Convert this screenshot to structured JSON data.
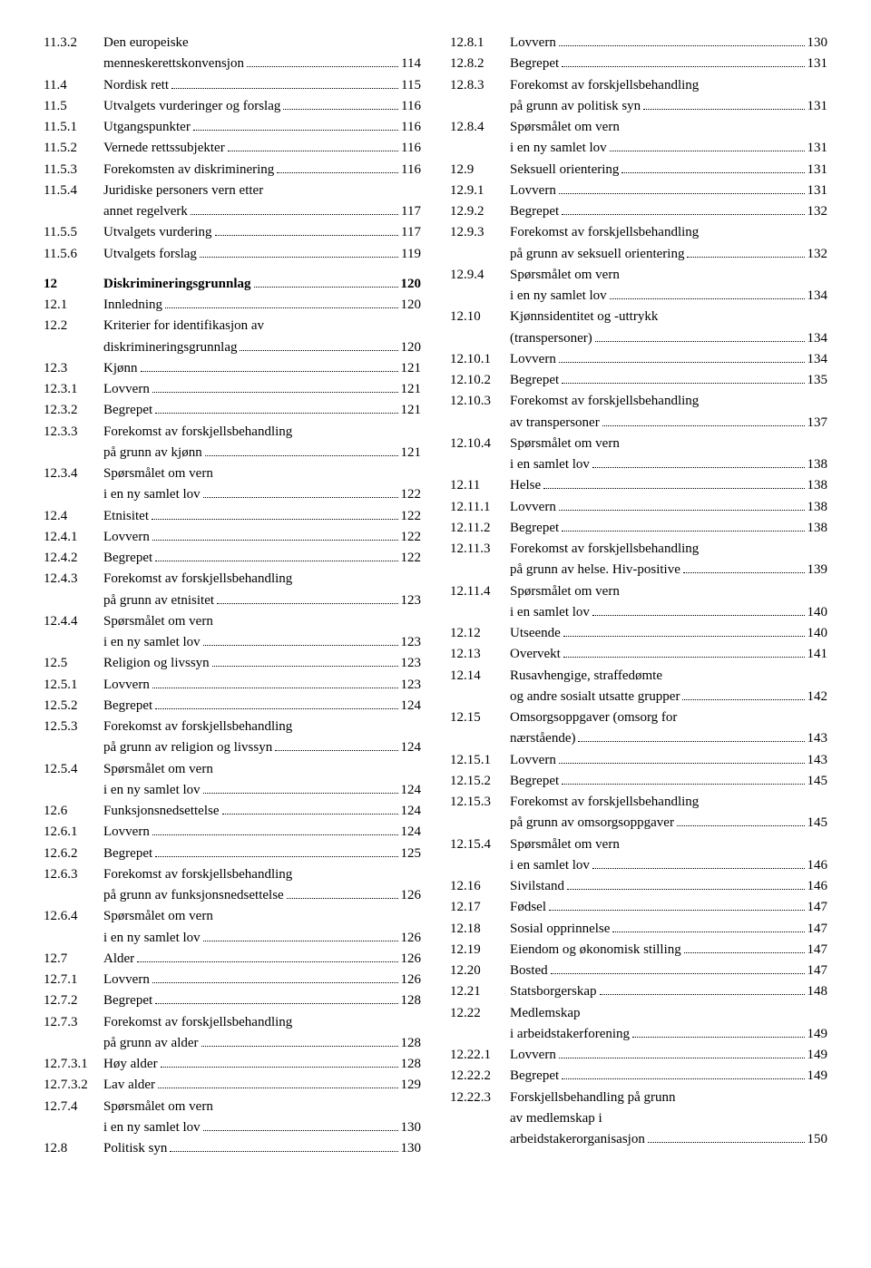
{
  "fontsize_pt": 11,
  "colors": {
    "text": "#000000",
    "background": "#ffffff",
    "dots": "#000000"
  },
  "left": [
    {
      "num": "11.3.2",
      "title": "Den europeiske",
      "cont": [
        "menneskerettskonvensjon"
      ],
      "page": "114"
    },
    {
      "num": "11.4",
      "title": "Nordisk rett",
      "page": "115"
    },
    {
      "num": "11.5",
      "title": "Utvalgets vurderinger og forslag",
      "page": "116"
    },
    {
      "num": "11.5.1",
      "title": "Utgangspunkter",
      "page": "116"
    },
    {
      "num": "11.5.2",
      "title": "Vernede rettssubjekter",
      "page": "116"
    },
    {
      "num": "11.5.3",
      "title": "Forekomsten av diskriminering",
      "page": "116"
    },
    {
      "num": "11.5.4",
      "title": "Juridiske personers vern etter",
      "cont": [
        "annet regelverk"
      ],
      "page": "117"
    },
    {
      "num": "11.5.5",
      "title": "Utvalgets vurdering",
      "page": "117"
    },
    {
      "num": "11.5.6",
      "title": "Utvalgets forslag",
      "page": "119"
    },
    {
      "num": "12",
      "title": "Diskrimineringsgrunnlag",
      "page": "120",
      "bold": true,
      "gap": true
    },
    {
      "num": "12.1",
      "title": "Innledning",
      "page": "120"
    },
    {
      "num": "12.2",
      "title": "Kriterier for identifikasjon av",
      "cont": [
        "diskrimineringsgrunnlag"
      ],
      "page": "120"
    },
    {
      "num": "12.3",
      "title": "Kjønn",
      "page": "121"
    },
    {
      "num": "12.3.1",
      "title": "Lovvern",
      "page": "121"
    },
    {
      "num": "12.3.2",
      "title": "Begrepet",
      "page": "121"
    },
    {
      "num": "12.3.3",
      "title": "Forekomst av forskjellsbehandling",
      "cont": [
        "på grunn av kjønn"
      ],
      "page": "121"
    },
    {
      "num": "12.3.4",
      "title": "Spørsmålet om vern",
      "cont": [
        "i en ny samlet lov"
      ],
      "page": "122"
    },
    {
      "num": "12.4",
      "title": "Etnisitet",
      "page": "122"
    },
    {
      "num": "12.4.1",
      "title": "Lovvern",
      "page": "122"
    },
    {
      "num": "12.4.2",
      "title": "Begrepet",
      "page": "122"
    },
    {
      "num": "12.4.3",
      "title": "Forekomst av forskjellsbehandling",
      "cont": [
        "på grunn av etnisitet"
      ],
      "page": "123"
    },
    {
      "num": "12.4.4",
      "title": "Spørsmålet om vern",
      "cont": [
        "i en ny samlet lov"
      ],
      "page": "123"
    },
    {
      "num": "12.5",
      "title": "Religion og livssyn",
      "page": "123"
    },
    {
      "num": "12.5.1",
      "title": "Lovvern",
      "page": "123"
    },
    {
      "num": "12.5.2",
      "title": "Begrepet",
      "page": "124"
    },
    {
      "num": "12.5.3",
      "title": "Forekomst av forskjellsbehandling",
      "cont": [
        "på grunn av religion og livssyn"
      ],
      "page": "124"
    },
    {
      "num": "12.5.4",
      "title": "Spørsmålet om vern",
      "cont": [
        " i en ny samlet lov"
      ],
      "page": "124"
    },
    {
      "num": "12.6",
      "title": "Funksjonsnedsettelse",
      "page": "124"
    },
    {
      "num": "12.6.1",
      "title": "Lovvern",
      "page": "124"
    },
    {
      "num": "12.6.2",
      "title": "Begrepet",
      "page": "125"
    },
    {
      "num": "12.6.3",
      "title": "Forekomst av forskjellsbehandling",
      "cont": [
        "på grunn av funksjonsnedsettelse"
      ],
      "page": "126"
    },
    {
      "num": "12.6.4",
      "title": "Spørsmålet om vern",
      "cont": [
        "i en ny samlet lov"
      ],
      "page": "126"
    },
    {
      "num": "12.7",
      "title": "Alder",
      "page": "126"
    },
    {
      "num": "12.7.1",
      "title": "Lovvern",
      "page": "126"
    },
    {
      "num": "12.7.2",
      "title": "Begrepet",
      "page": "128"
    },
    {
      "num": "12.7.3",
      "title": "Forekomst av forskjellsbehandling",
      "cont": [
        "på grunn av alder"
      ],
      "page": "128"
    },
    {
      "num": "12.7.3.1",
      "title": "Høy alder",
      "page": "128"
    },
    {
      "num": "12.7.3.2",
      "title": "Lav alder",
      "page": "129"
    },
    {
      "num": "12.7.4",
      "title": "Spørsmålet om vern",
      "cont": [
        "i en ny samlet lov"
      ],
      "page": "130"
    },
    {
      "num": "12.8",
      "title": "Politisk syn",
      "page": "130"
    }
  ],
  "right": [
    {
      "num": "12.8.1",
      "title": "Lovvern",
      "page": "130"
    },
    {
      "num": "12.8.2",
      "title": "Begrepet",
      "page": "131"
    },
    {
      "num": "12.8.3",
      "title": "Forekomst av forskjellsbehandling",
      "cont": [
        "på grunn av politisk syn"
      ],
      "page": "131"
    },
    {
      "num": "12.8.4",
      "title": "Spørsmålet om vern",
      "cont": [
        "i en ny samlet lov"
      ],
      "page": "131"
    },
    {
      "num": "12.9",
      "title": "Seksuell orientering",
      "page": "131"
    },
    {
      "num": "12.9.1",
      "title": "Lovvern",
      "page": "131"
    },
    {
      "num": "12.9.2",
      "title": "Begrepet",
      "page": "132"
    },
    {
      "num": "12.9.3",
      "title": "Forekomst av forskjellsbehandling",
      "cont": [
        "på grunn av seksuell orientering"
      ],
      "page": "132"
    },
    {
      "num": "12.9.4",
      "title": "Spørsmålet om vern",
      "cont": [
        "i en ny samlet lov"
      ],
      "page": "134"
    },
    {
      "num": "12.10",
      "title": "Kjønnsidentitet og -uttrykk",
      "cont": [
        "(transpersoner)"
      ],
      "page": "134"
    },
    {
      "num": "12.10.1",
      "title": "Lovvern",
      "page": "134"
    },
    {
      "num": "12.10.2",
      "title": "Begrepet",
      "page": "135"
    },
    {
      "num": "12.10.3",
      "title": "Forekomst av forskjellsbehandling",
      "cont": [
        "av transpersoner"
      ],
      "page": "137"
    },
    {
      "num": "12.10.4",
      "title": "Spørsmålet om vern",
      "cont": [
        "i en samlet lov"
      ],
      "page": "138"
    },
    {
      "num": "12.11",
      "title": "Helse",
      "page": "138"
    },
    {
      "num": "12.11.1",
      "title": "Lovvern",
      "page": "138"
    },
    {
      "num": "12.11.2",
      "title": "Begrepet",
      "page": "138"
    },
    {
      "num": "12.11.3",
      "title": "Forekomst av forskjellsbehandling",
      "cont": [
        "på grunn av helse. Hiv-positive"
      ],
      "page": "139"
    },
    {
      "num": "12.11.4",
      "title": "Spørsmålet om vern",
      "cont": [
        "i en samlet lov"
      ],
      "page": "140"
    },
    {
      "num": "12.12",
      "title": "Utseende",
      "page": "140"
    },
    {
      "num": "12.13",
      "title": "Overvekt",
      "page": "141"
    },
    {
      "num": "12.14",
      "title": "Rusavhengige, straffedømte",
      "cont": [
        "og andre sosialt utsatte grupper"
      ],
      "page": "142"
    },
    {
      "num": "12.15",
      "title": "Omsorgsoppgaver (omsorg for",
      "cont": [
        "nærstående)"
      ],
      "page": "143"
    },
    {
      "num": "12.15.1",
      "title": "Lovvern",
      "page": "143"
    },
    {
      "num": "12.15.2",
      "title": "Begrepet",
      "page": "145"
    },
    {
      "num": "12.15.3",
      "title": "Forekomst av forskjellsbehandling",
      "cont": [
        "på grunn av omsorgsoppgaver"
      ],
      "page": "145"
    },
    {
      "num": "12.15.4",
      "title": "Spørsmålet om vern",
      "cont": [
        "i en samlet lov"
      ],
      "page": "146"
    },
    {
      "num": "12.16",
      "title": "Sivilstand",
      "page": "146"
    },
    {
      "num": "12.17",
      "title": "Fødsel",
      "page": "147"
    },
    {
      "num": "12.18",
      "title": "Sosial opprinnelse",
      "page": "147"
    },
    {
      "num": "12.19",
      "title": "Eiendom og økonomisk stilling",
      "page": "147"
    },
    {
      "num": "12.20",
      "title": "Bosted",
      "page": "147"
    },
    {
      "num": "12.21",
      "title": "Statsborgerskap",
      "page": "148"
    },
    {
      "num": "12.22",
      "title": "Medlemskap",
      "cont": [
        "i arbeidstakerforening"
      ],
      "page": "149"
    },
    {
      "num": "12.22.1",
      "title": "Lovvern",
      "page": "149"
    },
    {
      "num": "12.22.2",
      "title": "Begrepet",
      "page": "149"
    },
    {
      "num": "12.22.3",
      "title": "Forskjellsbehandling på grunn",
      "cont": [
        "av medlemskap i",
        "arbeidstakerorganisasjon"
      ],
      "page": "150"
    }
  ]
}
